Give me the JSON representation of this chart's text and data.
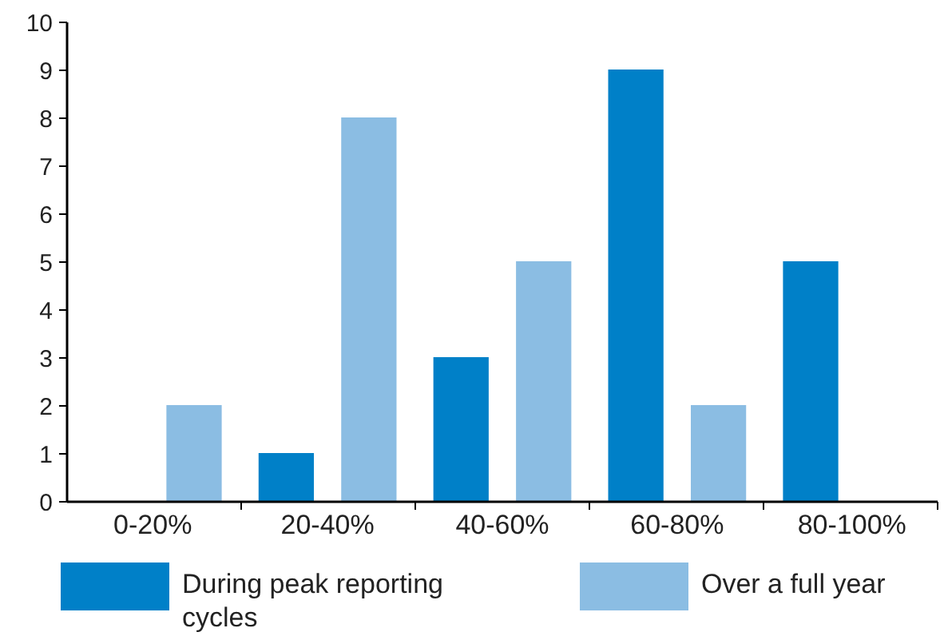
{
  "chart_data": {
    "type": "bar",
    "categories": [
      "0-20%",
      "20-40%",
      "40-60%",
      "60-80%",
      "80-100%"
    ],
    "series": [
      {
        "name": "During peak reporting cycles",
        "color": "#0080c8",
        "values": [
          0,
          1,
          3,
          9,
          5
        ]
      },
      {
        "name": "Over a full year",
        "color": "#8bbde3",
        "values": [
          2,
          8,
          5,
          2,
          0
        ]
      }
    ],
    "ylim": [
      0,
      10
    ],
    "yticks": [
      0,
      1,
      2,
      3,
      4,
      5,
      6,
      7,
      8,
      9,
      10
    ],
    "grid": false,
    "legend": "bottom"
  }
}
